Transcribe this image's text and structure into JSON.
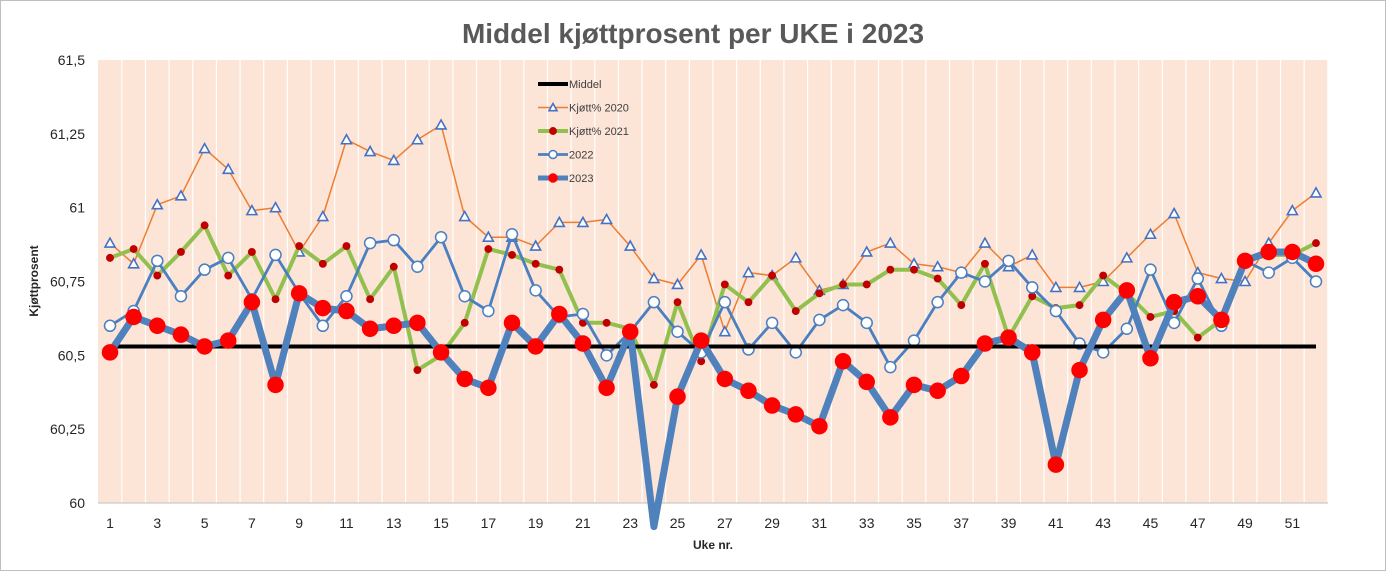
{
  "chart_data": {
    "type": "line",
    "title": "Middel kjøttprosent per UKE i 2023",
    "xlabel": "Uke nr.",
    "ylabel": "Kjøttprosent",
    "xlim": [
      1,
      52
    ],
    "ylim": [
      60,
      61.5
    ],
    "x_tick_labels": [
      "1",
      "3",
      "5",
      "7",
      "9",
      "11",
      "13",
      "15",
      "17",
      "19",
      "21",
      "23",
      "25",
      "27",
      "29",
      "31",
      "33",
      "35",
      "37",
      "39",
      "41",
      "43",
      "45",
      "47",
      "49",
      "51"
    ],
    "y_tick_labels": [
      "60",
      "60,25",
      "60,5",
      "60,75",
      "61",
      "61,25",
      "61,5"
    ],
    "y_tick_values": [
      60,
      60.25,
      60.5,
      60.75,
      61,
      61.25,
      61.5
    ],
    "grid": "vertical",
    "legend_position": "top-center",
    "colors": {
      "plot_background": "#fce4d6",
      "middel": "#000000",
      "series_2020": "#ed7d31",
      "series_2020_marker": "#4472c4",
      "series_2021": "#92c04f",
      "series_2021_marker": "#c00000",
      "series_2022": "#4a7fc1",
      "series_2023": "#4f81bd",
      "series_2023_marker": "#ff0000",
      "title": "#595959",
      "gridline": "#ffffff"
    },
    "x": [
      1,
      2,
      3,
      4,
      5,
      6,
      7,
      8,
      9,
      10,
      11,
      12,
      13,
      14,
      15,
      16,
      17,
      18,
      19,
      20,
      21,
      22,
      23,
      24,
      25,
      26,
      27,
      28,
      29,
      30,
      31,
      32,
      33,
      34,
      35,
      36,
      37,
      38,
      39,
      40,
      41,
      42,
      43,
      44,
      45,
      46,
      47,
      48,
      49,
      50,
      51,
      52
    ],
    "series": [
      {
        "name": "Middel",
        "values": [
          60.53,
          60.53,
          60.53,
          60.53,
          60.53,
          60.53,
          60.53,
          60.53,
          60.53,
          60.53,
          60.53,
          60.53,
          60.53,
          60.53,
          60.53,
          60.53,
          60.53,
          60.53,
          60.53,
          60.53,
          60.53,
          60.53,
          60.53,
          60.53,
          60.53,
          60.53,
          60.53,
          60.53,
          60.53,
          60.53,
          60.53,
          60.53,
          60.53,
          60.53,
          60.53,
          60.53,
          60.53,
          60.53,
          60.53,
          60.53,
          60.53,
          60.53,
          60.53,
          60.53,
          60.53,
          60.53,
          60.53,
          60.53,
          60.53,
          60.53,
          60.53,
          60.53
        ]
      },
      {
        "name": "Kjøtt% 2020",
        "values": [
          60.88,
          60.81,
          61.01,
          61.04,
          61.2,
          61.13,
          60.99,
          61,
          60.85,
          60.97,
          61.23,
          61.19,
          61.16,
          61.23,
          61.28,
          60.97,
          60.9,
          60.9,
          60.87,
          60.95,
          60.95,
          60.96,
          60.87,
          60.76,
          60.74,
          60.84,
          60.58,
          60.78,
          60.77,
          60.83,
          60.72,
          60.74,
          60.85,
          60.88,
          60.81,
          60.8,
          60.78,
          60.88,
          60.8,
          60.84,
          60.73,
          60.73,
          60.75,
          60.83,
          60.91,
          60.98,
          60.78,
          60.76,
          60.75,
          60.88,
          60.99,
          61.05
        ]
      },
      {
        "name": "Kjøtt% 2021",
        "values": [
          60.83,
          60.86,
          60.77,
          60.85,
          60.94,
          60.77,
          60.85,
          60.69,
          60.87,
          60.81,
          60.87,
          60.69,
          60.8,
          60.45,
          60.5,
          60.61,
          60.86,
          60.84,
          60.81,
          60.79,
          60.61,
          60.61,
          60.59,
          60.4,
          60.68,
          60.48,
          60.74,
          60.68,
          60.77,
          60.65,
          60.71,
          60.74,
          60.74,
          60.79,
          60.79,
          60.76,
          60.67,
          60.81,
          60.56,
          60.7,
          60.66,
          60.67,
          60.77,
          60.71,
          60.63,
          60.65,
          60.56,
          60.62,
          60.82,
          60.84,
          60.84,
          60.88
        ]
      },
      {
        "name": "2022",
        "values": [
          60.6,
          60.65,
          60.82,
          60.7,
          60.79,
          60.83,
          60.69,
          60.84,
          60.71,
          60.6,
          60.7,
          60.88,
          60.89,
          60.8,
          60.9,
          60.7,
          60.65,
          60.91,
          60.72,
          60.63,
          60.64,
          60.5,
          60.58,
          60.68,
          60.58,
          60.51,
          60.68,
          60.52,
          60.61,
          60.51,
          60.62,
          60.67,
          60.61,
          60.46,
          60.55,
          60.68,
          60.78,
          60.75,
          60.82,
          60.73,
          60.65,
          60.54,
          60.51,
          60.59,
          60.79,
          60.61,
          60.76,
          60.6,
          60.82,
          60.78,
          60.83,
          60.75
        ]
      },
      {
        "name": "2023",
        "values": [
          60.51,
          60.63,
          60.6,
          60.57,
          60.53,
          60.55,
          60.68,
          60.4,
          60.71,
          60.66,
          60.65,
          60.59,
          60.6,
          60.61,
          60.51,
          60.42,
          60.39,
          60.61,
          60.53,
          60.64,
          60.54,
          60.39,
          60.58,
          59.92,
          60.36,
          60.55,
          60.42,
          60.38,
          60.33,
          60.3,
          60.26,
          60.48,
          60.41,
          60.29,
          60.4,
          60.38,
          60.43,
          60.54,
          60.56,
          60.51,
          60.13,
          60.45,
          60.62,
          60.72,
          60.49,
          60.68,
          60.7,
          60.62,
          60.82,
          60.85,
          60.85,
          60.81
        ]
      }
    ]
  }
}
